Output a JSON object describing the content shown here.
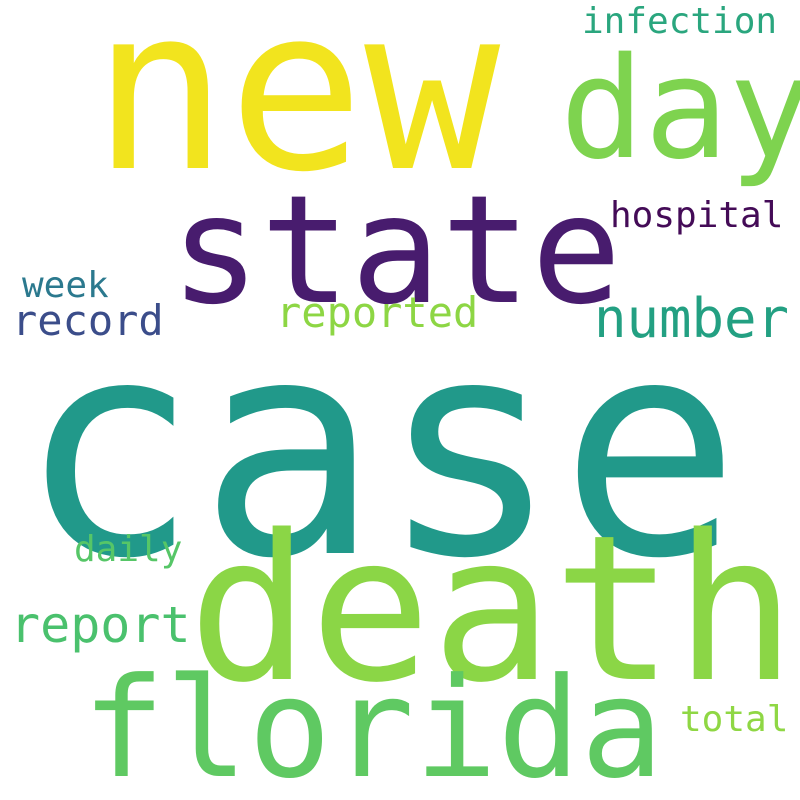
{
  "words": {
    "new": {
      "text": "new",
      "color": "#f2e41e"
    },
    "day": {
      "text": "day",
      "color": "#7ed34f"
    },
    "infection": {
      "text": "infection",
      "color": "#2aa67e"
    },
    "state": {
      "text": "state",
      "color": "#481c6e"
    },
    "hospital": {
      "text": "hospital",
      "color": "#440b57"
    },
    "week": {
      "text": "week",
      "color": "#2b798e"
    },
    "record": {
      "text": "record",
      "color": "#3b4d8a"
    },
    "reported": {
      "text": "reported",
      "color": "#8dd644"
    },
    "number": {
      "text": "number",
      "color": "#23a082"
    },
    "case": {
      "text": "case",
      "color": "#21998a"
    },
    "daily": {
      "text": "daily",
      "color": "#56c667"
    },
    "death": {
      "text": "death",
      "color": "#8bd646"
    },
    "report": {
      "text": "report",
      "color": "#4ac16d"
    },
    "florida": {
      "text": "florida",
      "color": "#5fc962"
    },
    "total": {
      "text": "total",
      "color": "#8fd744"
    }
  }
}
